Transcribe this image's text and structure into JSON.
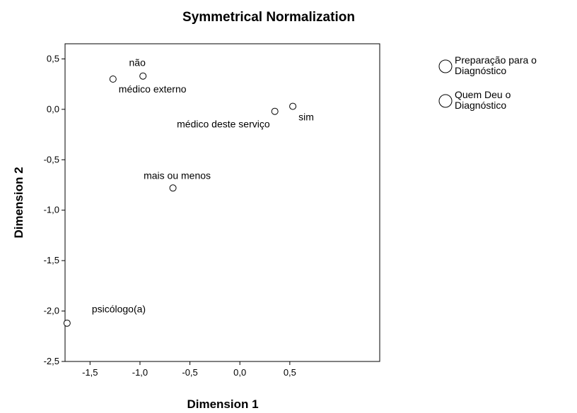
{
  "chart_data": {
    "type": "scatter",
    "title": "Symmetrical Normalization",
    "xlabel": "Dimension 1",
    "ylabel": "Dimension 2",
    "xlim": [
      -1.75,
      1.4
    ],
    "ylim": [
      -2.5,
      0.65
    ],
    "x_ticks": [
      "-1,5",
      "-1,0",
      "-0,5",
      "0,0",
      "0,5"
    ],
    "y_ticks": [
      "0,5",
      "0,0",
      "-0,5",
      "-1,0",
      "-1,5",
      "-2,0",
      "-2,5"
    ],
    "grid": false,
    "legend_position": "top-right",
    "series": [
      {
        "name": "Preparação para o Diagnóstico",
        "legend_lines": [
          "Preparação para o",
          "Diagnóstico"
        ],
        "points": [
          {
            "label": "não",
            "x": -0.97,
            "y": 0.33
          },
          {
            "label": "sim",
            "x": 0.53,
            "y": 0.03
          },
          {
            "label": "mais ou menos",
            "x": -0.67,
            "y": -0.78
          }
        ]
      },
      {
        "name": "Quem Deu o Diagnóstico",
        "legend_lines": [
          "Quem Deu o",
          "Diagnóstico"
        ],
        "points": [
          {
            "label": "médico externo",
            "x": -1.27,
            "y": 0.3
          },
          {
            "label": "médico deste serviço",
            "x": 0.35,
            "y": -0.02
          },
          {
            "label": "psicólogo(a)",
            "x": -1.73,
            "y": -2.12
          }
        ]
      }
    ]
  }
}
